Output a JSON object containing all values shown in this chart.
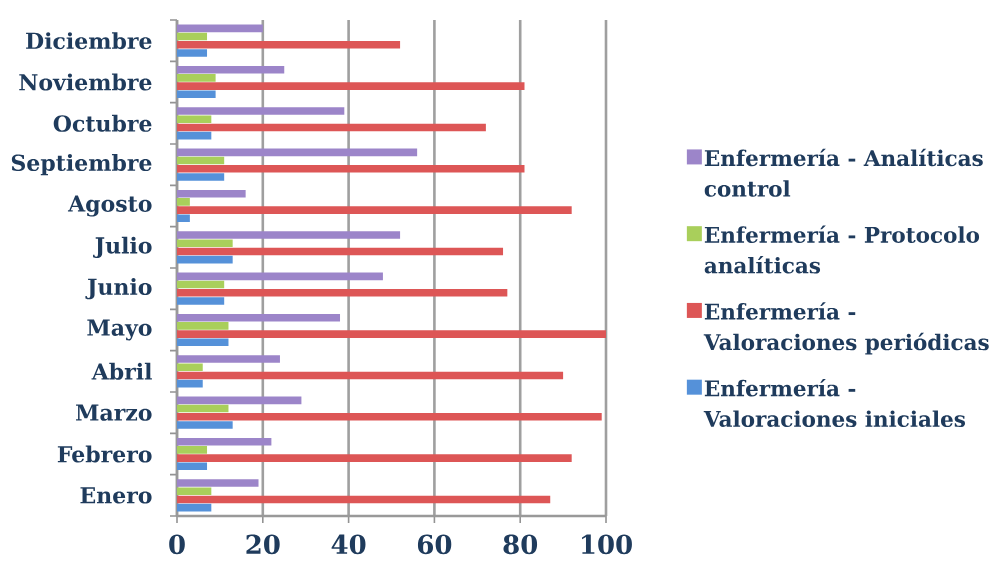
{
  "chart_data": {
    "type": "bar",
    "orientation": "horizontal",
    "categories": [
      "Diciembre",
      "Noviembre",
      "Octubre",
      "Septiembre",
      "Agosto",
      "Julio",
      "Junio",
      "Mayo",
      "Abril",
      "Marzo",
      "Febrero",
      "Enero"
    ],
    "series": [
      {
        "name": "Enfermería - Analíticas control",
        "color": "#9c85c9",
        "values": [
          20,
          25,
          39,
          56,
          16,
          52,
          48,
          38,
          24,
          29,
          22,
          19
        ]
      },
      {
        "name": "Enfermería - Protocolo analíticas",
        "color": "#a9cf5b",
        "values": [
          7,
          9,
          8,
          11,
          3,
          13,
          11,
          12,
          6,
          12,
          7,
          8
        ]
      },
      {
        "name": "Enfermería - Valoraciones periódicas",
        "color": "#dd5656",
        "values": [
          52,
          81,
          72,
          81,
          92,
          76,
          77,
          100,
          90,
          99,
          92,
          87
        ]
      },
      {
        "name": "Enfermería - Valoraciones iniciales",
        "color": "#5591d9",
        "values": [
          7,
          9,
          8,
          11,
          3,
          13,
          11,
          12,
          6,
          13,
          7,
          8
        ]
      }
    ],
    "xlim": [
      0,
      100
    ],
    "xticks": [
      0,
      20,
      40,
      60,
      80,
      100
    ],
    "grid": "x",
    "legend": "right"
  }
}
